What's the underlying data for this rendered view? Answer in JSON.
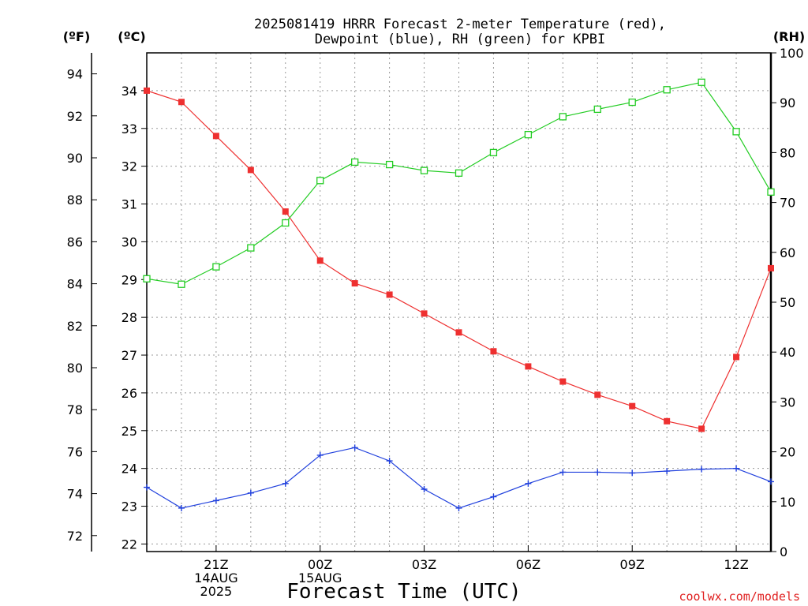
{
  "chart_data": {
    "type": "line",
    "title_lines": [
      "2025081419 HRRR Forecast 2-meter Temperature (red),",
      "Dewpoint (blue), RH (green) for KPBI"
    ],
    "xlabel": "Forecast Time (UTC)",
    "units": {
      "f": "(ºF)",
      "c": "(ºC)",
      "rh": "(RH)"
    },
    "x_hours": [
      19,
      20,
      21,
      22,
      23,
      24,
      25,
      26,
      27,
      28,
      29,
      30,
      31,
      32,
      33,
      34,
      35,
      36,
      37
    ],
    "x_range": [
      19,
      37
    ],
    "x_ticks": [
      {
        "hour": 21,
        "lines": [
          "21Z",
          "14AUG",
          "2025"
        ]
      },
      {
        "hour": 24,
        "lines": [
          "00Z",
          "15AUG"
        ]
      },
      {
        "hour": 27,
        "lines": [
          "03Z"
        ]
      },
      {
        "hour": 30,
        "lines": [
          "06Z"
        ]
      },
      {
        "hour": 33,
        "lines": [
          "09Z"
        ]
      },
      {
        "hour": 36,
        "lines": [
          "12Z"
        ]
      }
    ],
    "c_range": [
      21.8,
      35
    ],
    "c_ticks": [
      "22",
      "23",
      "24",
      "25",
      "26",
      "27",
      "28",
      "29",
      "30",
      "31",
      "32",
      "33",
      "34"
    ],
    "f_ticks": [
      "72",
      "74",
      "76",
      "78",
      "80",
      "82",
      "84",
      "86",
      "88",
      "90",
      "92",
      "94"
    ],
    "rh_range": [
      0,
      100
    ],
    "rh_ticks": [
      "0",
      "10",
      "20",
      "30",
      "40",
      "50",
      "60",
      "70",
      "80",
      "90",
      "100"
    ],
    "series": [
      {
        "name": "Temperature",
        "unit": "C",
        "color": "#ee3030",
        "marker": "filled-square",
        "values": [
          34.0,
          33.7,
          32.8,
          31.9,
          30.8,
          29.5,
          28.9,
          28.6,
          28.1,
          27.6,
          27.1,
          26.7,
          26.3,
          25.95,
          25.65,
          25.25,
          25.05,
          26.95,
          29.3
        ]
      },
      {
        "name": "Dewpoint",
        "unit": "C",
        "color": "#2040dd",
        "marker": "plus",
        "values": [
          23.5,
          22.95,
          23.15,
          23.35,
          23.6,
          24.35,
          24.55,
          24.2,
          23.45,
          22.95,
          23.25,
          23.6,
          23.9,
          23.9,
          23.88,
          23.93,
          23.98,
          24.0,
          23.65
        ]
      },
      {
        "name": "RH",
        "unit": "%",
        "color": "#22cc22",
        "marker": "open-square",
        "values": [
          54.7,
          53.6,
          57.1,
          60.9,
          65.9,
          74.4,
          78.1,
          77.6,
          76.4,
          75.9,
          80.0,
          83.6,
          87.2,
          88.7,
          90.1,
          92.6,
          94.1,
          84.2,
          72.1
        ]
      }
    ],
    "grid": true,
    "legend": "none"
  },
  "credit": "coolwx.com/models"
}
